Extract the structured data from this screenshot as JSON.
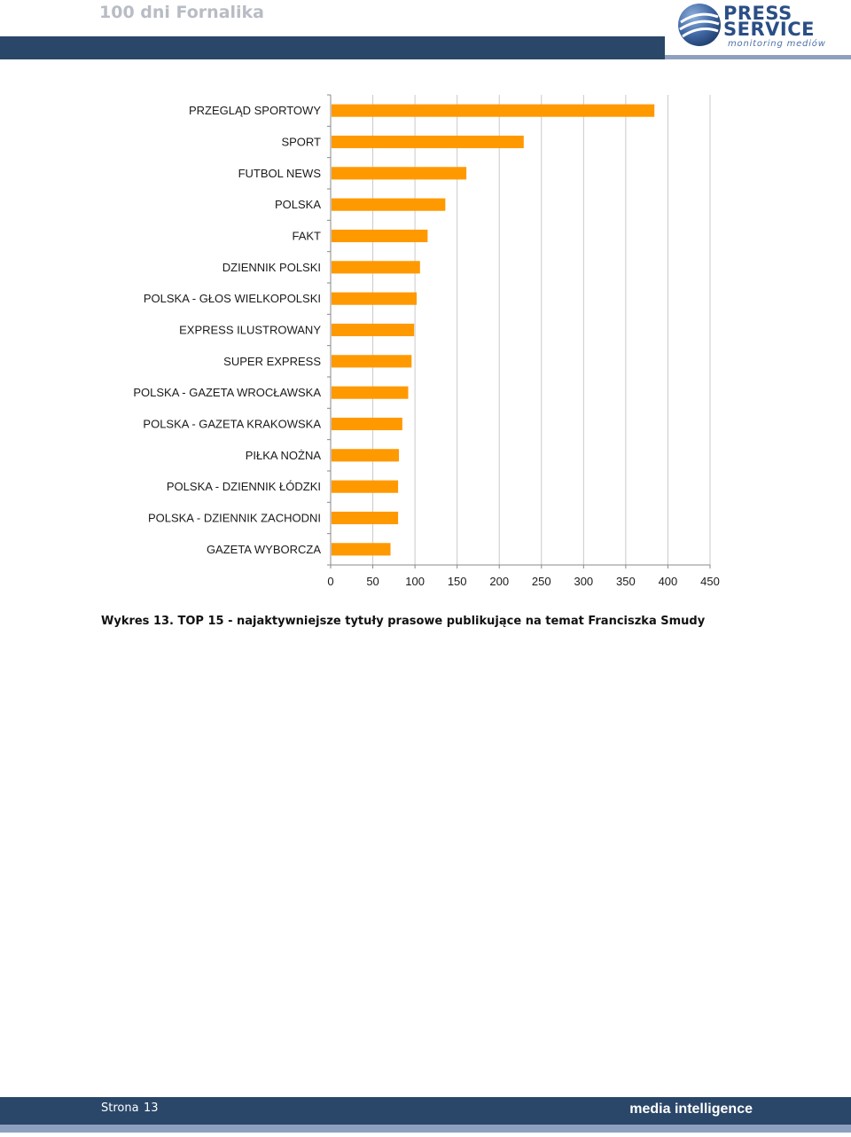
{
  "header": {
    "title": "100 dni Fornalika",
    "logo": {
      "word1": "PRESS",
      "word2": "SERVICE",
      "tagline": "monitoring mediów"
    }
  },
  "colors": {
    "header_band": "#2a4769",
    "accent_line": "#8ea0bf",
    "bar": "#ff9900"
  },
  "chart_data": {
    "type": "bar",
    "orientation": "horizontal",
    "categories": [
      "PRZEGLĄD SPORTOWY",
      "SPORT",
      "FUTBOL NEWS",
      "POLSKA",
      "FAKT",
      "DZIENNIK POLSKI",
      "POLSKA - GŁOS WIELKOPOLSKI",
      "EXPRESS ILUSTROWANY",
      "SUPER EXPRESS",
      "POLSKA - GAZETA WROCŁAWSKA",
      "POLSKA - GAZETA KRAKOWSKA",
      "PIŁKA NOŻNA",
      "POLSKA - DZIENNIK ŁÓDZKI",
      "POLSKA - DZIENNIK ZACHODNI",
      "GAZETA WYBORCZA"
    ],
    "values": [
      384,
      229,
      161,
      136,
      115,
      106,
      102,
      99,
      96,
      92,
      85,
      81,
      80,
      80,
      71
    ],
    "xlim": [
      0,
      450
    ],
    "xticks": [
      "0",
      "50",
      "100",
      "150",
      "200",
      "250",
      "300",
      "350",
      "400",
      "450"
    ],
    "grid": true,
    "legend": "none"
  },
  "caption": "Wykres 13. TOP 15 - najaktywniejsze tytuły prasowe publikujące na temat Franciszka Smudy",
  "footer": {
    "page_label": "Strona",
    "page_number": "13",
    "brand": "media intelligence"
  }
}
